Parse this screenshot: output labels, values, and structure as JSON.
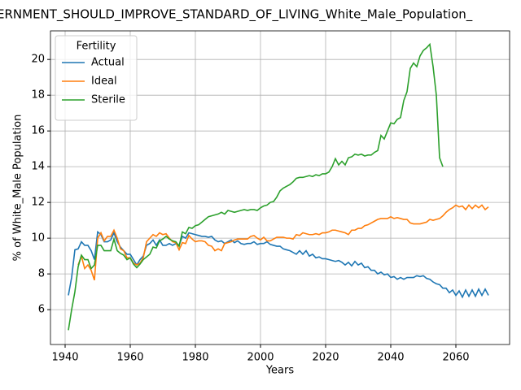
{
  "chart_data": {
    "type": "line",
    "title": "ERNMENT_SHOULD_IMPROVE_STANDARD_OF_LIVING_White_Male_Population_",
    "xlabel": "Years",
    "ylabel": "% of White_Male Population",
    "legend_title": "Fertility",
    "legend": "upper left",
    "grid": true,
    "xlim": [
      1935.5,
      2076.5
    ],
    "ylim": [
      4.05,
      21.6
    ],
    "xticks": [
      1940,
      1960,
      1980,
      2000,
      2020,
      2040,
      2060
    ],
    "yticks": [
      6,
      8,
      10,
      12,
      14,
      16,
      18,
      20
    ],
    "x": [
      1941,
      1942,
      1943,
      1944,
      1945,
      1946,
      1947,
      1948,
      1949,
      1950,
      1951,
      1952,
      1953,
      1954,
      1955,
      1956,
      1957,
      1958,
      1959,
      1960,
      1961,
      1962,
      1963,
      1964,
      1965,
      1966,
      1967,
      1968,
      1969,
      1970,
      1971,
      1972,
      1973,
      1974,
      1975,
      1976,
      1977,
      1978,
      1979,
      1980,
      1981,
      1982,
      1983,
      1984,
      1985,
      1986,
      1987,
      1988,
      1989,
      1990,
      1991,
      1992,
      1993,
      1994,
      1995,
      1996,
      1997,
      1998,
      1999,
      2000,
      2001,
      2002,
      2003,
      2004,
      2005,
      2006,
      2007,
      2008,
      2009,
      2010,
      2011,
      2012,
      2013,
      2014,
      2015,
      2016,
      2017,
      2018,
      2019,
      2020,
      2021,
      2022,
      2023,
      2024,
      2025,
      2026,
      2027,
      2028,
      2029,
      2030,
      2031,
      2032,
      2033,
      2034,
      2035,
      2036,
      2037,
      2038,
      2039,
      2040,
      2041,
      2042,
      2043,
      2044,
      2045,
      2046,
      2047,
      2048,
      2049,
      2050,
      2051,
      2052,
      2053,
      2054,
      2055,
      2056,
      2057,
      2058,
      2059,
      2060,
      2061,
      2062,
      2063,
      2064,
      2065,
      2066,
      2067,
      2068,
      2069,
      2070
    ],
    "series": [
      {
        "name": "Actual",
        "color": "#1f77b4",
        "values": [
          6.8,
          7.8,
          9.35,
          9.4,
          9.8,
          9.6,
          9.6,
          9.3,
          8.8,
          10.35,
          10.2,
          9.8,
          9.8,
          9.9,
          10.3,
          9.8,
          9.5,
          9.3,
          9.1,
          9.1,
          8.8,
          8.5,
          8.8,
          9.0,
          9.6,
          9.7,
          9.9,
          9.6,
          9.9,
          9.6,
          9.6,
          9.7,
          9.6,
          9.7,
          9.6,
          10.1,
          10.0,
          10.3,
          10.25,
          10.2,
          10.15,
          10.1,
          10.1,
          10.05,
          10.1,
          9.9,
          9.8,
          9.85,
          9.7,
          9.8,
          9.9,
          9.75,
          9.85,
          9.7,
          9.65,
          9.7,
          9.7,
          9.8,
          9.65,
          9.7,
          9.7,
          9.8,
          9.65,
          9.6,
          9.55,
          9.55,
          9.4,
          9.35,
          9.3,
          9.2,
          9.1,
          9.3,
          9.1,
          9.3,
          9.0,
          9.1,
          8.9,
          8.95,
          8.85,
          8.85,
          8.8,
          8.75,
          8.7,
          8.75,
          8.65,
          8.5,
          8.65,
          8.45,
          8.7,
          8.5,
          8.6,
          8.35,
          8.4,
          8.2,
          8.2,
          8.0,
          8.1,
          7.95,
          8.0,
          7.8,
          7.85,
          7.7,
          7.8,
          7.7,
          7.8,
          7.8,
          7.8,
          7.9,
          7.85,
          7.9,
          7.75,
          7.7,
          7.55,
          7.45,
          7.4,
          7.2,
          7.2,
          6.95,
          7.1,
          6.8,
          7.05,
          6.7,
          7.1,
          6.75,
          7.1,
          6.75,
          7.15,
          6.8,
          7.15,
          6.8
        ]
      },
      {
        "name": "Ideal",
        "color": "#ff7f0e",
        "values": [
          null,
          null,
          null,
          8.5,
          9.0,
          8.3,
          8.5,
          8.2,
          7.65,
          10.0,
          10.3,
          9.85,
          10.1,
          10.1,
          10.45,
          10.0,
          9.4,
          9.3,
          8.9,
          8.9,
          8.6,
          8.5,
          8.6,
          8.9,
          9.8,
          10.0,
          10.2,
          10.1,
          10.3,
          10.2,
          10.25,
          10.0,
          9.8,
          9.75,
          9.35,
          9.75,
          9.7,
          10.15,
          9.95,
          9.8,
          9.85,
          9.85,
          9.8,
          9.6,
          9.55,
          9.3,
          9.4,
          9.3,
          9.7,
          9.75,
          9.8,
          9.9,
          9.95,
          9.95,
          9.95,
          9.95,
          10.1,
          10.15,
          10.0,
          9.9,
          10.05,
          9.85,
          9.85,
          9.95,
          10.05,
          10.05,
          10.05,
          10.0,
          10.0,
          9.95,
          10.2,
          10.15,
          10.3,
          10.25,
          10.2,
          10.2,
          10.25,
          10.2,
          10.3,
          10.3,
          10.35,
          10.45,
          10.45,
          10.4,
          10.35,
          10.3,
          10.2,
          10.45,
          10.45,
          10.55,
          10.55,
          10.7,
          10.75,
          10.85,
          10.95,
          11.05,
          11.1,
          11.1,
          11.1,
          11.2,
          11.1,
          11.15,
          11.1,
          11.05,
          11.05,
          10.85,
          10.8,
          10.8,
          10.8,
          10.85,
          10.9,
          11.05,
          11.0,
          11.05,
          11.1,
          11.25,
          11.45,
          11.6,
          11.7,
          11.85,
          11.75,
          11.8,
          11.6,
          11.85,
          11.65,
          11.85,
          11.7,
          11.85,
          11.6,
          11.75
        ]
      },
      {
        "name": "Sterile",
        "color": "#2ca02c",
        "values": [
          4.85,
          6.0,
          7.0,
          8.4,
          9.05,
          8.8,
          8.8,
          8.3,
          8.5,
          9.6,
          9.6,
          9.3,
          9.3,
          9.3,
          9.95,
          9.3,
          9.15,
          9.05,
          8.8,
          8.9,
          8.55,
          8.35,
          8.55,
          8.8,
          8.95,
          9.1,
          9.5,
          9.45,
          9.85,
          9.95,
          10.1,
          9.95,
          9.85,
          9.8,
          9.55,
          10.35,
          10.25,
          10.6,
          10.55,
          10.7,
          10.75,
          10.9,
          11.05,
          11.2,
          11.25,
          11.3,
          11.35,
          11.45,
          11.35,
          11.55,
          11.5,
          11.45,
          11.5,
          11.55,
          11.6,
          11.55,
          11.6,
          11.6,
          11.55,
          11.7,
          11.8,
          11.85,
          12.0,
          12.05,
          12.3,
          12.65,
          12.8,
          12.9,
          13.0,
          13.15,
          13.35,
          13.4,
          13.4,
          13.45,
          13.5,
          13.45,
          13.55,
          13.5,
          13.6,
          13.6,
          13.7,
          14.0,
          14.45,
          14.1,
          14.3,
          14.1,
          14.5,
          14.55,
          14.7,
          14.65,
          14.7,
          14.6,
          14.65,
          14.65,
          14.8,
          14.9,
          15.75,
          15.55,
          16.0,
          16.45,
          16.4,
          16.65,
          16.75,
          17.7,
          18.2,
          19.5,
          19.8,
          19.6,
          20.2,
          20.5,
          20.65,
          20.85,
          19.6,
          18.0,
          14.5,
          14.0,
          null,
          null,
          null,
          null,
          null,
          null,
          null,
          null,
          null,
          null,
          null,
          null,
          null,
          null
        ]
      }
    ]
  }
}
